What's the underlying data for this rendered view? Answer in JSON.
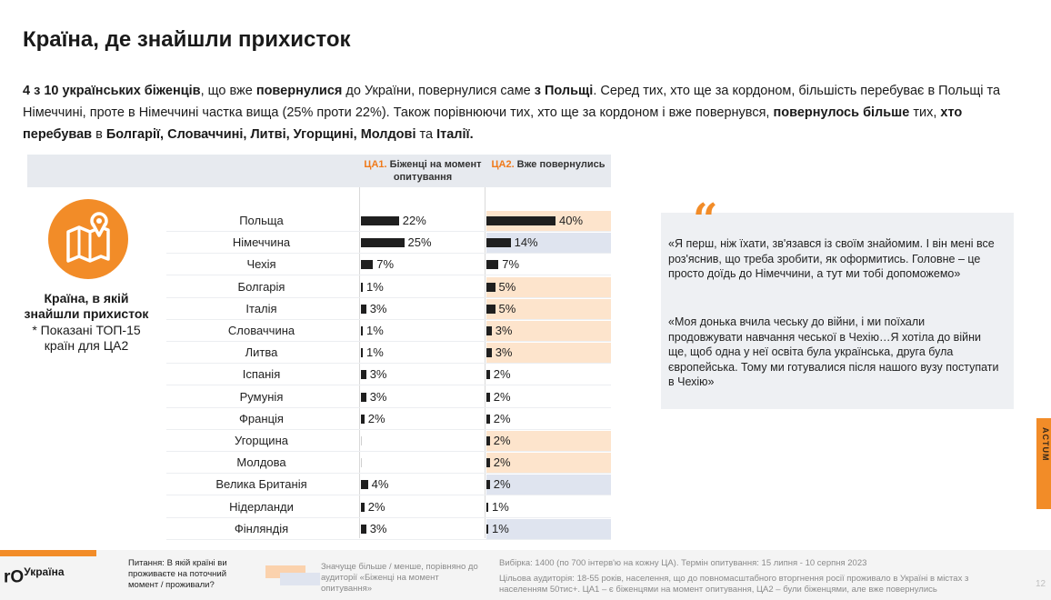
{
  "title": "Країна, де знайшли прихисток",
  "intro": [
    {
      "t": "4 з 10 українських біженців",
      "b": true
    },
    {
      "t": ", що вже ",
      "b": false
    },
    {
      "t": "повернулися",
      "b": true
    },
    {
      "t": " до України, повернулися саме ",
      "b": false
    },
    {
      "t": "з Польщі",
      "b": true
    },
    {
      "t": ". Серед тих, хто ще за кордоном, більшість перебуває в Польщі та Німеччині, проте в Німеччині частка вища (25% проти 22%). Також порівнюючи тих, хто ще за кордоном і вже повернувся, ",
      "b": false
    },
    {
      "t": "повернулось більше",
      "b": true
    },
    {
      "t": "  тих, ",
      "b": false
    },
    {
      "t": "хто перебував",
      "b": true
    },
    {
      "t": " в ",
      "b": false
    },
    {
      "t": "Болгарії, Словаччині, Литві, Угорщині, Молдові",
      "b": true
    },
    {
      "t": " та ",
      "b": false
    },
    {
      "t": "Італії.",
      "b": true
    }
  ],
  "columns": {
    "ca1_code": "ЦА1.",
    "ca1_label": " Біженці на момент опитування",
    "ca2_code": "ЦА2.",
    "ca2_label": " Вже повернулись"
  },
  "side": {
    "label": "Країна, в якій знайшли прихисток",
    "note": "* Показані ТОП-15 країн для ЦА2"
  },
  "chart_data": {
    "type": "bar",
    "categories": [
      "Польща",
      "Німеччина",
      "Чехія",
      "Болгарія",
      "Італія",
      "Словаччина",
      "Литва",
      "Іспанія",
      "Румунія",
      "Франція",
      "Угорщина",
      "Молдова",
      "Велика Британія",
      "Нідерланди",
      "Фінляндія"
    ],
    "series": [
      {
        "name": "ЦА1. Біженці на момент опитування",
        "values": [
          22,
          25,
          7,
          1,
          3,
          1,
          1,
          3,
          3,
          2,
          null,
          null,
          4,
          2,
          3
        ]
      },
      {
        "name": "ЦА2. Вже повернулись",
        "values": [
          40,
          14,
          7,
          5,
          5,
          3,
          3,
          2,
          2,
          2,
          2,
          2,
          2,
          1,
          1
        ]
      }
    ],
    "ca2_highlight": [
      "more",
      "less",
      "none",
      "more",
      "more",
      "more",
      "more",
      "none",
      "none",
      "none",
      "more",
      "more",
      "less",
      "none",
      "less"
    ],
    "unit": "%"
  },
  "colors": {
    "accent": "#f28c28",
    "more": "#fde4cc",
    "less": "#dfe4ef",
    "bar": "#1f1f1f"
  },
  "quotes": [
    "«Я перш, ніж їхати, зв'язався із своїм знайомим. І він мені все роз'яснив, що треба зробити, як оформитись. Головне – це просто доїдь до Німеччини, а тут ми тобі допоможемо»",
    "«Моя донька вчила чеську до війни, і ми поїхали продовжувати навчання чеської в Чехію…Я хотіла до війни ще, щоб одна у неї освіта була українська, друга була європейська. Тому ми готувалися після нашого вузу поступати в Чехію»"
  ],
  "quote_icon": "quote-icon",
  "side_tab": "ACTUM",
  "footer": {
    "logo_main": "Україна",
    "logo_prefix": "rO",
    "question": "Питання: В якій країні ви проживаєте на поточний момент / проживали?",
    "legend": "Значуще більше / менше, порівняно до аудиторії «Біженці на момент опитування»",
    "sample": "Вибірка: 1400 (по 700 інтерв'ю на кожну ЦА). Термін опитування: 15 липня - 10 серпня 2023",
    "audience": "Цільова аудиторія: 18-55 років, населення, що до повномасштабного вторгнення росії проживало в Україні в містах з населенням 50тис+. ЦА1 – є біженцями на момент опитування, ЦА2 – були біженцями, але вже повернулись",
    "page": "12"
  }
}
